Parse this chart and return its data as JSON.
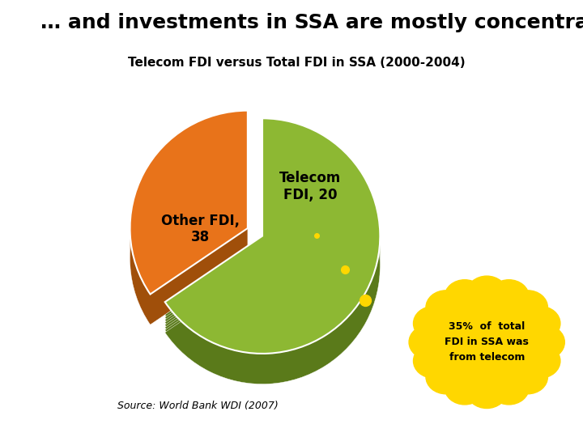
{
  "title": "… and investments in SSA are mostly concentrated on ICT",
  "subtitle": "Telecom FDI versus Total FDI in SSA (2000-2004)",
  "source": "Source: World Bank WDI (2007)",
  "slices": [
    20,
    38
  ],
  "labels": [
    "Telecom\nFDI, 20",
    "Other FDI,\n38"
  ],
  "colors_top": [
    "#E8731A",
    "#8DB833"
  ],
  "colors_side": [
    "#A04F0A",
    "#5A7A1A"
  ],
  "explode": [
    0.12,
    0.0
  ],
  "startangle": 90,
  "annotation": "35%  of  total\nFDI in SSA was\nfrom telecom",
  "annotation_bg": "#FFD700",
  "gray_bg": "#B8B8B8",
  "title_fontsize": 18,
  "subtitle_fontsize": 11,
  "label_fontsize": 12
}
